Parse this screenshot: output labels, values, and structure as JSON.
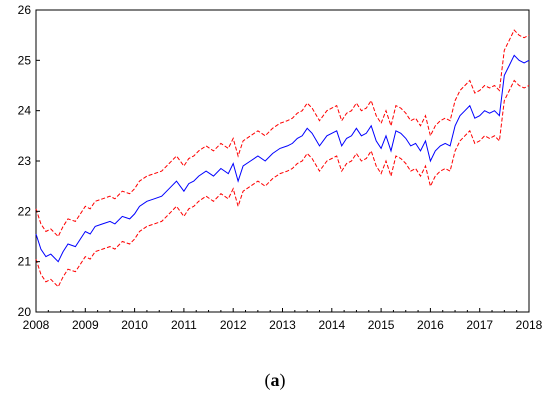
{
  "chart_data": {
    "type": "line",
    "title": "",
    "xlabel": "",
    "ylabel": "",
    "xlim": [
      2008,
      2018
    ],
    "ylim": [
      20,
      26
    ],
    "x_ticks": [
      "2008",
      "2009",
      "2010",
      "2011",
      "2012",
      "2013",
      "2014",
      "2015",
      "2016",
      "2017",
      "2018"
    ],
    "y_ticks": [
      "20",
      "21",
      "22",
      "23",
      "24",
      "25",
      "26"
    ],
    "grid": false,
    "legend": "none",
    "series": [
      {
        "color": "#0000ff",
        "dash": "solid",
        "x": [
          2008.0,
          2008.1,
          2008.2,
          2008.3,
          2008.45,
          2008.55,
          2008.65,
          2008.8,
          2008.9,
          2009.0,
          2009.1,
          2009.2,
          2009.35,
          2009.5,
          2009.6,
          2009.75,
          2009.9,
          2010.0,
          2010.1,
          2010.25,
          2010.4,
          2010.55,
          2010.7,
          2010.85,
          2011.0,
          2011.1,
          2011.2,
          2011.3,
          2011.45,
          2011.6,
          2011.75,
          2011.9,
          2012.0,
          2012.1,
          2012.2,
          2012.35,
          2012.5,
          2012.65,
          2012.8,
          2012.95,
          2013.1,
          2013.2,
          2013.3,
          2013.4,
          2013.5,
          2013.6,
          2013.75,
          2013.9,
          2014.0,
          2014.1,
          2014.2,
          2014.3,
          2014.4,
          2014.5,
          2014.6,
          2014.7,
          2014.8,
          2014.9,
          2015.0,
          2015.1,
          2015.2,
          2015.3,
          2015.4,
          2015.5,
          2015.6,
          2015.7,
          2015.8,
          2015.9,
          2016.0,
          2016.1,
          2016.2,
          2016.3,
          2016.4,
          2016.5,
          2016.6,
          2016.7,
          2016.8,
          2016.9,
          2017.0,
          2017.1,
          2017.2,
          2017.3,
          2017.4,
          2017.5,
          2017.6,
          2017.7,
          2017.8,
          2017.9,
          2018.0
        ],
        "y": [
          21.55,
          21.25,
          21.1,
          21.15,
          21.0,
          21.2,
          21.35,
          21.3,
          21.45,
          21.6,
          21.55,
          21.7,
          21.75,
          21.8,
          21.75,
          21.9,
          21.85,
          21.95,
          22.1,
          22.2,
          22.25,
          22.3,
          22.45,
          22.6,
          22.4,
          22.55,
          22.6,
          22.7,
          22.8,
          22.7,
          22.85,
          22.75,
          22.95,
          22.6,
          22.9,
          23.0,
          23.1,
          23.0,
          23.15,
          23.25,
          23.3,
          23.35,
          23.45,
          23.5,
          23.65,
          23.55,
          23.3,
          23.5,
          23.55,
          23.6,
          23.3,
          23.45,
          23.5,
          23.65,
          23.5,
          23.55,
          23.7,
          23.4,
          23.25,
          23.5,
          23.2,
          23.6,
          23.55,
          23.45,
          23.3,
          23.35,
          23.2,
          23.4,
          23.0,
          23.2,
          23.3,
          23.35,
          23.3,
          23.7,
          23.9,
          24.0,
          24.1,
          23.85,
          23.9,
          24.0,
          23.95,
          24.0,
          23.9,
          24.7,
          24.9,
          25.1,
          25.0,
          24.95,
          25.0
        ]
      },
      {
        "color": "#ff0000",
        "dash": "dashed",
        "x": [
          2008.0,
          2008.1,
          2008.2,
          2008.3,
          2008.45,
          2008.55,
          2008.65,
          2008.8,
          2008.9,
          2009.0,
          2009.1,
          2009.2,
          2009.35,
          2009.5,
          2009.6,
          2009.75,
          2009.9,
          2010.0,
          2010.1,
          2010.25,
          2010.4,
          2010.55,
          2010.7,
          2010.85,
          2011.0,
          2011.1,
          2011.2,
          2011.3,
          2011.45,
          2011.6,
          2011.75,
          2011.9,
          2012.0,
          2012.1,
          2012.2,
          2012.35,
          2012.5,
          2012.65,
          2012.8,
          2012.95,
          2013.1,
          2013.2,
          2013.3,
          2013.4,
          2013.5,
          2013.6,
          2013.75,
          2013.9,
          2014.0,
          2014.1,
          2014.2,
          2014.3,
          2014.4,
          2014.5,
          2014.6,
          2014.7,
          2014.8,
          2014.9,
          2015.0,
          2015.1,
          2015.2,
          2015.3,
          2015.4,
          2015.5,
          2015.6,
          2015.7,
          2015.8,
          2015.9,
          2016.0,
          2016.1,
          2016.2,
          2016.3,
          2016.4,
          2016.5,
          2016.6,
          2016.7,
          2016.8,
          2016.9,
          2017.0,
          2017.1,
          2017.2,
          2017.3,
          2017.4,
          2017.5,
          2017.6,
          2017.7,
          2017.8,
          2017.9,
          2018.0
        ],
        "y": [
          22.05,
          21.75,
          21.6,
          21.65,
          21.5,
          21.7,
          21.85,
          21.8,
          21.95,
          22.1,
          22.05,
          22.2,
          22.25,
          22.3,
          22.25,
          22.4,
          22.35,
          22.45,
          22.6,
          22.7,
          22.75,
          22.8,
          22.95,
          23.1,
          22.9,
          23.05,
          23.1,
          23.2,
          23.3,
          23.2,
          23.35,
          23.25,
          23.45,
          23.1,
          23.4,
          23.5,
          23.6,
          23.5,
          23.65,
          23.75,
          23.8,
          23.85,
          23.95,
          24.0,
          24.15,
          24.05,
          23.8,
          24.0,
          24.05,
          24.1,
          23.8,
          23.95,
          24.0,
          24.15,
          24.0,
          24.05,
          24.2,
          23.9,
          23.75,
          24.0,
          23.7,
          24.1,
          24.05,
          23.95,
          23.8,
          23.85,
          23.7,
          23.9,
          23.5,
          23.7,
          23.8,
          23.85,
          23.8,
          24.2,
          24.4,
          24.5,
          24.6,
          24.35,
          24.4,
          24.5,
          24.45,
          24.5,
          24.4,
          25.2,
          25.4,
          25.6,
          25.5,
          25.45,
          25.5
        ]
      },
      {
        "color": "#ff0000",
        "dash": "dashed",
        "x": [
          2008.0,
          2008.1,
          2008.2,
          2008.3,
          2008.45,
          2008.55,
          2008.65,
          2008.8,
          2008.9,
          2009.0,
          2009.1,
          2009.2,
          2009.35,
          2009.5,
          2009.6,
          2009.75,
          2009.9,
          2010.0,
          2010.1,
          2010.25,
          2010.4,
          2010.55,
          2010.7,
          2010.85,
          2011.0,
          2011.1,
          2011.2,
          2011.3,
          2011.45,
          2011.6,
          2011.75,
          2011.9,
          2012.0,
          2012.1,
          2012.2,
          2012.35,
          2012.5,
          2012.65,
          2012.8,
          2012.95,
          2013.1,
          2013.2,
          2013.3,
          2013.4,
          2013.5,
          2013.6,
          2013.75,
          2013.9,
          2014.0,
          2014.1,
          2014.2,
          2014.3,
          2014.4,
          2014.5,
          2014.6,
          2014.7,
          2014.8,
          2014.9,
          2015.0,
          2015.1,
          2015.2,
          2015.3,
          2015.4,
          2015.5,
          2015.6,
          2015.7,
          2015.8,
          2015.9,
          2016.0,
          2016.1,
          2016.2,
          2016.3,
          2016.4,
          2016.5,
          2016.6,
          2016.7,
          2016.8,
          2016.9,
          2017.0,
          2017.1,
          2017.2,
          2017.3,
          2017.4,
          2017.5,
          2017.6,
          2017.7,
          2017.8,
          2017.9,
          2018.0
        ],
        "y": [
          21.05,
          20.75,
          20.6,
          20.65,
          20.5,
          20.7,
          20.85,
          20.8,
          20.95,
          21.1,
          21.05,
          21.2,
          21.25,
          21.3,
          21.25,
          21.4,
          21.35,
          21.45,
          21.6,
          21.7,
          21.75,
          21.8,
          21.95,
          22.1,
          21.9,
          22.05,
          22.1,
          22.2,
          22.3,
          22.2,
          22.35,
          22.25,
          22.45,
          22.1,
          22.4,
          22.5,
          22.6,
          22.5,
          22.65,
          22.75,
          22.8,
          22.85,
          22.95,
          23.0,
          23.15,
          23.05,
          22.8,
          23.0,
          23.05,
          23.1,
          22.8,
          22.95,
          23.0,
          23.15,
          23.0,
          23.05,
          23.2,
          22.9,
          22.75,
          23.0,
          22.7,
          23.1,
          23.05,
          22.95,
          22.8,
          22.85,
          22.7,
          22.9,
          22.5,
          22.7,
          22.8,
          22.85,
          22.8,
          23.2,
          23.4,
          23.5,
          23.6,
          23.35,
          23.4,
          23.5,
          23.45,
          23.5,
          23.4,
          24.2,
          24.4,
          24.6,
          24.5,
          24.45,
          24.5
        ]
      }
    ]
  },
  "caption": {
    "open": "(",
    "letter": "a",
    "close": ")"
  }
}
